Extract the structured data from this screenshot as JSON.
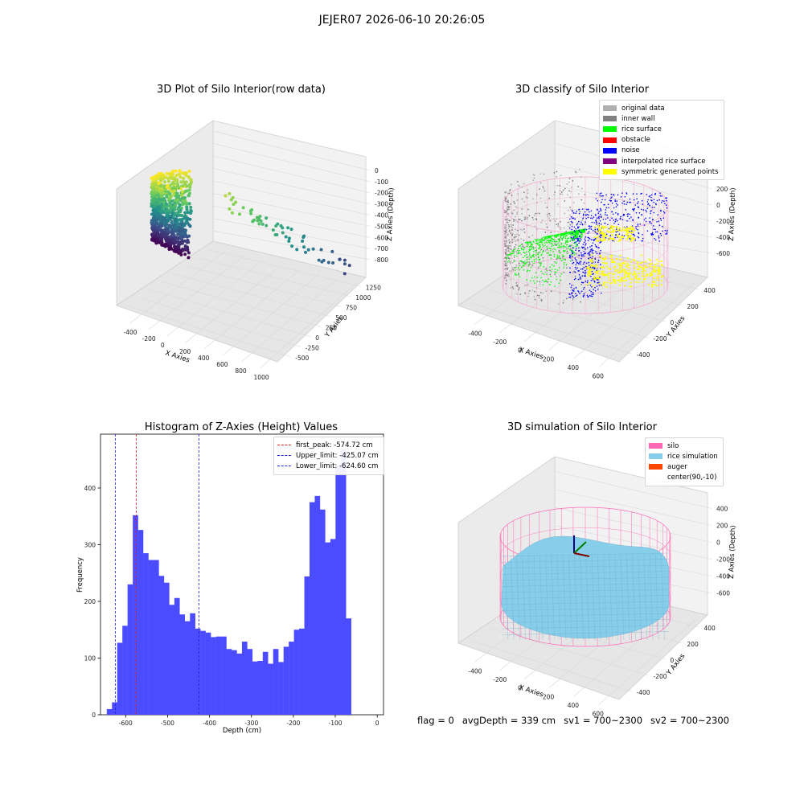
{
  "suptitle": "JEJER07 2026-06-10 20:26:05",
  "chart_data": [
    {
      "type": "scatter",
      "title": "3D Plot of Silo Interior(row data)",
      "xlabel": "X Axies",
      "ylabel": "Y Axies",
      "zlabel": "Z Axies (Depth)",
      "x_ticks": [
        "-400",
        "-200",
        "0",
        "200",
        "400",
        "600",
        "800",
        "1000"
      ],
      "y_ticks": [
        "-500",
        "-250",
        "0",
        "250",
        "500",
        "750",
        "1000",
        "1250"
      ],
      "z_ticks": [
        "0",
        "-100",
        "-200",
        "-300",
        "-400",
        "-500",
        "-600",
        "-700",
        "-800"
      ]
    },
    {
      "type": "scatter",
      "title": "3D classify of Silo Interior",
      "xlabel": "X Axies",
      "ylabel": "Y Axies",
      "zlabel": "Z Axies (Depth)",
      "x_ticks": [
        "-400",
        "-200",
        "0",
        "200",
        "400",
        "600"
      ],
      "y_ticks": [
        "-400",
        "-200",
        "0",
        "200",
        "400"
      ],
      "z_ticks": [
        "200",
        "0",
        "-200",
        "-400",
        "-600"
      ],
      "legend": [
        {
          "label": "original data",
          "color": "#b0b0b0"
        },
        {
          "label": "inner wall",
          "color": "#808080"
        },
        {
          "label": "rice surface",
          "color": "#00ff00"
        },
        {
          "label": "obstacle",
          "color": "#ff0000"
        },
        {
          "label": "noise",
          "color": "#0000ff"
        },
        {
          "label": "interpolated rice surface",
          "color": "#800080"
        },
        {
          "label": "symmetric generated points",
          "color": "#ffff00"
        }
      ]
    },
    {
      "type": "bar",
      "title": "Histogram of Z-Axies (Height) Values",
      "xlabel": "Depth (cm)",
      "ylabel": "Frequency",
      "xlim": [
        -660,
        15
      ],
      "ylim": [
        0,
        495
      ],
      "x_ticks": [
        -600,
        -500,
        -400,
        -300,
        -200,
        -100,
        0
      ],
      "y_ticks": [
        0,
        100,
        200,
        300,
        400
      ],
      "bin_start": -645,
      "bin_width": 12.4,
      "values": [
        10,
        22,
        127,
        157,
        230,
        352,
        326,
        285,
        273,
        273,
        245,
        233,
        194,
        206,
        177,
        165,
        179,
        152,
        148,
        145,
        137,
        138,
        138,
        116,
        114,
        108,
        129,
        116,
        94,
        95,
        111,
        90,
        116,
        93,
        120,
        129,
        150,
        152,
        244,
        375,
        386,
        362,
        304,
        310,
        440,
        468,
        170
      ],
      "bar_color": "#4b4bff",
      "vlines": [
        {
          "label": "first_peak: -574.72 cm",
          "x": -574.72,
          "color": "#d62020"
        },
        {
          "label": "Upper_limit: -425.07 cm",
          "x": -425.07,
          "color": "#2020d6"
        },
        {
          "label": "Lower_limit: -624.60 cm",
          "x": -624.6,
          "color": "#2020d6"
        }
      ]
    },
    {
      "type": "area",
      "title": "3D simulation of Silo Interior",
      "xlabel": "X Axies",
      "ylabel": "Y Axies",
      "zlabel": "Z Axies (Depth)",
      "x_ticks": [
        "-400",
        "-200",
        "0",
        "200",
        "400",
        "600"
      ],
      "y_ticks": [
        "-400",
        "-200",
        "0",
        "200",
        "400"
      ],
      "z_ticks": [
        "400",
        "200",
        "0",
        "-200",
        "-400",
        "-600"
      ],
      "legend": [
        {
          "label": "silo",
          "color": "#ff69b4"
        },
        {
          "label": "rice simulation",
          "color": "#87ceeb"
        },
        {
          "label": "auger",
          "color": "#ff4500"
        },
        {
          "label": "center(90,-10)",
          "color": ""
        }
      ]
    }
  ],
  "footer": {
    "flag": "flag = 0",
    "avg": "avgDepth = 339 cm",
    "sv1": "sv1 = 700~2300",
    "sv2": "sv2 = 700~2300"
  }
}
